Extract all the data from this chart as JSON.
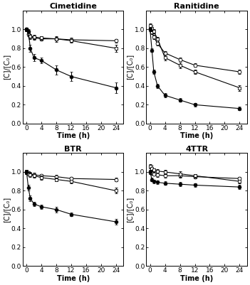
{
  "titles": [
    "Cimetidine",
    "Ranitidine",
    "BTR",
    "4TTR"
  ],
  "xlabel": "Time (h)",
  "ylabel": "[C]/[C₀]",
  "xticks": [
    0,
    4,
    8,
    12,
    16,
    20,
    24
  ],
  "yticks": [
    0.0,
    0.2,
    0.4,
    0.6,
    0.8,
    1.0
  ],
  "aerobic": {
    "time": [
      0,
      0.5,
      1,
      2,
      4,
      8,
      12,
      24
    ],
    "cimetidine": [
      1.0,
      0.98,
      0.8,
      0.7,
      0.67,
      0.57,
      0.5,
      0.38
    ],
    "ranitidine": [
      1.0,
      0.78,
      0.55,
      0.4,
      0.3,
      0.25,
      0.2,
      0.16
    ],
    "btr": [
      1.0,
      0.83,
      0.72,
      0.66,
      0.63,
      0.6,
      0.55,
      0.47
    ],
    "4ttr": [
      1.0,
      0.92,
      0.9,
      0.89,
      0.88,
      0.87,
      0.86,
      0.84
    ],
    "cimetidine_err": [
      0.02,
      0.02,
      0.04,
      0.04,
      0.03,
      0.05,
      0.05,
      0.06
    ],
    "ranitidine_err": [
      0.02,
      0.02,
      0.02,
      0.02,
      0.02,
      0.02,
      0.02,
      0.02
    ],
    "btr_err": [
      0.02,
      0.03,
      0.03,
      0.02,
      0.02,
      0.03,
      0.02,
      0.03
    ],
    "4ttr_err": [
      0.02,
      0.02,
      0.02,
      0.02,
      0.02,
      0.02,
      0.02,
      0.02
    ]
  },
  "anoxic": {
    "time": [
      0,
      0.5,
      1,
      2,
      4,
      8,
      12,
      24
    ],
    "cimetidine": [
      1.0,
      0.96,
      0.93,
      0.92,
      0.91,
      0.9,
      0.88,
      0.8
    ],
    "ranitidine": [
      1.04,
      1.01,
      0.98,
      0.9,
      0.7,
      0.62,
      0.55,
      0.38
    ],
    "btr": [
      1.0,
      0.98,
      0.97,
      0.96,
      0.94,
      0.92,
      0.9,
      0.8
    ],
    "4ttr": [
      1.06,
      1.04,
      1.02,
      1.01,
      1.0,
      0.98,
      0.96,
      0.9
    ],
    "cimetidine_err": [
      0.02,
      0.02,
      0.02,
      0.02,
      0.02,
      0.03,
      0.02,
      0.04
    ],
    "ranitidine_err": [
      0.02,
      0.03,
      0.02,
      0.02,
      0.03,
      0.03,
      0.02,
      0.03
    ],
    "btr_err": [
      0.02,
      0.02,
      0.02,
      0.02,
      0.02,
      0.02,
      0.02,
      0.03
    ],
    "4ttr_err": [
      0.02,
      0.03,
      0.02,
      0.02,
      0.02,
      0.03,
      0.02,
      0.02
    ]
  },
  "anaerobic": {
    "time": [
      0,
      0.5,
      1,
      2,
      4,
      8,
      12,
      24
    ],
    "cimetidine": [
      1.0,
      0.95,
      0.92,
      0.91,
      0.9,
      0.9,
      0.89,
      0.88
    ],
    "ranitidine": [
      1.0,
      0.97,
      0.92,
      0.85,
      0.75,
      0.68,
      0.62,
      0.55
    ],
    "btr": [
      1.0,
      0.99,
      0.98,
      0.97,
      0.96,
      0.95,
      0.93,
      0.92
    ],
    "4ttr": [
      1.0,
      0.99,
      0.98,
      0.97,
      0.96,
      0.96,
      0.95,
      0.93
    ],
    "cimetidine_err": [
      0.02,
      0.02,
      0.02,
      0.02,
      0.02,
      0.02,
      0.02,
      0.02
    ],
    "ranitidine_err": [
      0.02,
      0.02,
      0.02,
      0.02,
      0.02,
      0.02,
      0.02,
      0.02
    ],
    "btr_err": [
      0.02,
      0.02,
      0.02,
      0.02,
      0.02,
      0.02,
      0.02,
      0.02
    ],
    "4ttr_err": [
      0.02,
      0.02,
      0.02,
      0.02,
      0.02,
      0.02,
      0.02,
      0.02
    ]
  },
  "title_fontsize": 8,
  "label_fontsize": 7,
  "tick_fontsize": 6.5,
  "marker_size": 3.5,
  "line_width": 0.8,
  "cap_size": 1.5
}
